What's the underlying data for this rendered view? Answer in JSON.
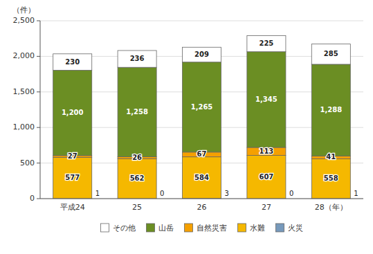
{
  "chart_data": {
    "type": "bar",
    "stacked": true,
    "categories": [
      "平成24",
      "25",
      "26",
      "27",
      "28（年）"
    ],
    "y_label": "（件）",
    "series": [
      {
        "name": "火災",
        "color": "#7799bb",
        "values": [
          1,
          0,
          3,
          0,
          1
        ]
      },
      {
        "name": "水難",
        "color": "#f5b800",
        "values": [
          577,
          562,
          584,
          607,
          558
        ]
      },
      {
        "name": "自然災害",
        "color": "#f5a000",
        "values": [
          27,
          26,
          67,
          113,
          41
        ]
      },
      {
        "name": "山岳",
        "color": "#6b8e23",
        "values": [
          1200,
          1258,
          1265,
          1345,
          1288
        ],
        "value_labels": [
          "1,200",
          "1,258",
          "1,265",
          "1,345",
          "1,288"
        ]
      },
      {
        "name": "その他",
        "color": "#ffffff",
        "values": [
          230,
          236,
          209,
          225,
          285
        ]
      }
    ],
    "ylim": [
      0,
      2500
    ],
    "yticks": [
      0,
      500,
      {
        "value": 1000,
        "label": "1,000"
      },
      {
        "value": 1500,
        "label": "1,500"
      },
      {
        "value": 2000,
        "label": "2,000"
      },
      {
        "value": 2500,
        "label": "2,500"
      }
    ],
    "grid": true,
    "legend": "bottom",
    "data_labels": true
  }
}
